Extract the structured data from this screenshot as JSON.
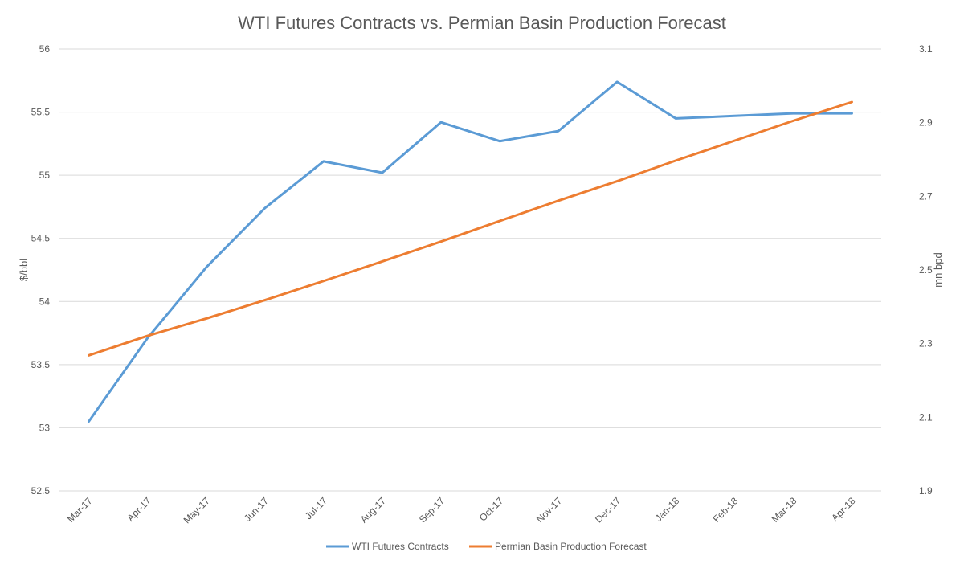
{
  "chart_data": {
    "type": "line",
    "title": "WTI Futures Contracts vs. Permian Basin Production Forecast",
    "categories": [
      "Mar-17",
      "Apr-17",
      "May-17",
      "Jun-17",
      "Jul-17",
      "Aug-17",
      "Sep-17",
      "Oct-17",
      "Nov-17",
      "Dec-17",
      "Jan-18",
      "Feb-18",
      "Mar-18",
      "Apr-18"
    ],
    "ylabel": "$/bbl",
    "y2label": "mn bpd",
    "ylim": [
      52.5,
      56
    ],
    "yticks": [
      "52.5",
      "53",
      "53.5",
      "54",
      "54.5",
      "55",
      "55.5",
      "56"
    ],
    "y2lim": [
      1.9,
      3.1
    ],
    "y2ticks": [
      "1.9",
      "2.1",
      "2.3",
      "2.5",
      "2.7",
      "2.9",
      "3.1"
    ],
    "grid": true,
    "legend_position": "bottom",
    "series": [
      {
        "name": "WTI Futures Contracts",
        "axis": "left",
        "color": "#5B9BD5",
        "values": [
          53.05,
          53.71,
          54.27,
          54.74,
          55.11,
          55.02,
          55.42,
          55.27,
          55.35,
          55.74,
          55.45,
          55.47,
          55.49,
          55.49
        ]
      },
      {
        "name": "Permian Basin Production Forecast",
        "axis": "right",
        "color": "#ED7D31",
        "values": [
          2.268,
          2.321,
          2.368,
          2.418,
          2.47,
          2.523,
          2.577,
          2.633,
          2.688,
          2.741,
          2.797,
          2.851,
          2.905,
          2.956
        ]
      }
    ]
  }
}
